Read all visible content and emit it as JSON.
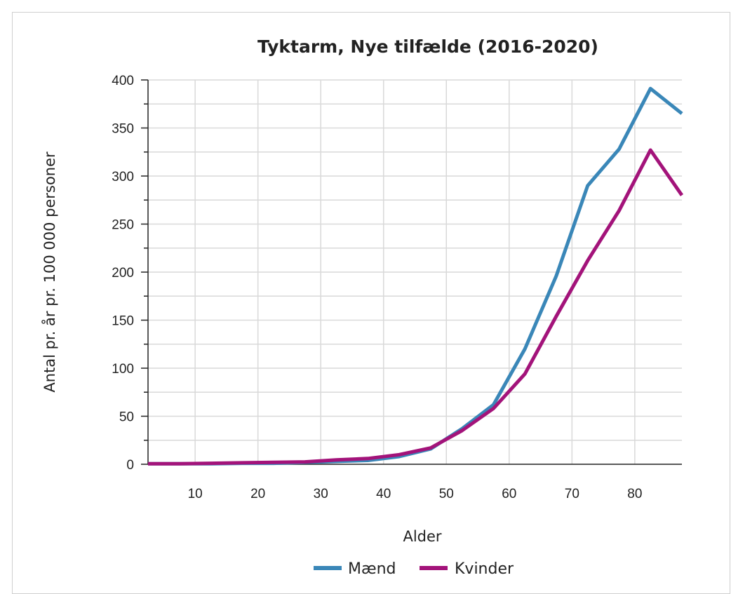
{
  "chart_data": {
    "type": "line",
    "title": "Tyktarm, Nye tilfælde (2016-2020)",
    "xlabel": "Alder",
    "ylabel": "Antal pr. år pr. 100 000 personer",
    "xlim": [
      2.5,
      87.5
    ],
    "ylim": [
      0,
      400
    ],
    "x_ticks": [
      10,
      20,
      30,
      40,
      50,
      60,
      70,
      80
    ],
    "y_ticks": [
      0,
      50,
      100,
      150,
      200,
      250,
      300,
      350,
      400
    ],
    "grid": true,
    "legend_position": "bottom",
    "x": [
      2.5,
      7.5,
      12.5,
      17.5,
      22.5,
      27.5,
      32.5,
      37.5,
      42.5,
      47.5,
      52.5,
      57.5,
      62.5,
      67.5,
      72.5,
      77.5,
      82.5,
      87.5
    ],
    "series": [
      {
        "name": "Mænd",
        "color": "#3a87b8",
        "values": [
          0.5,
          0.5,
          0.5,
          1,
          1,
          2,
          3,
          4,
          8,
          16,
          37,
          62,
          120,
          196,
          290,
          328,
          391,
          365
        ]
      },
      {
        "name": "Kvinder",
        "color": "#a3137a",
        "values": [
          0.5,
          0.5,
          1,
          1.5,
          2,
          2.5,
          4.5,
          6,
          10,
          17,
          35,
          58,
          94,
          154,
          212,
          264,
          327,
          280
        ]
      }
    ]
  }
}
